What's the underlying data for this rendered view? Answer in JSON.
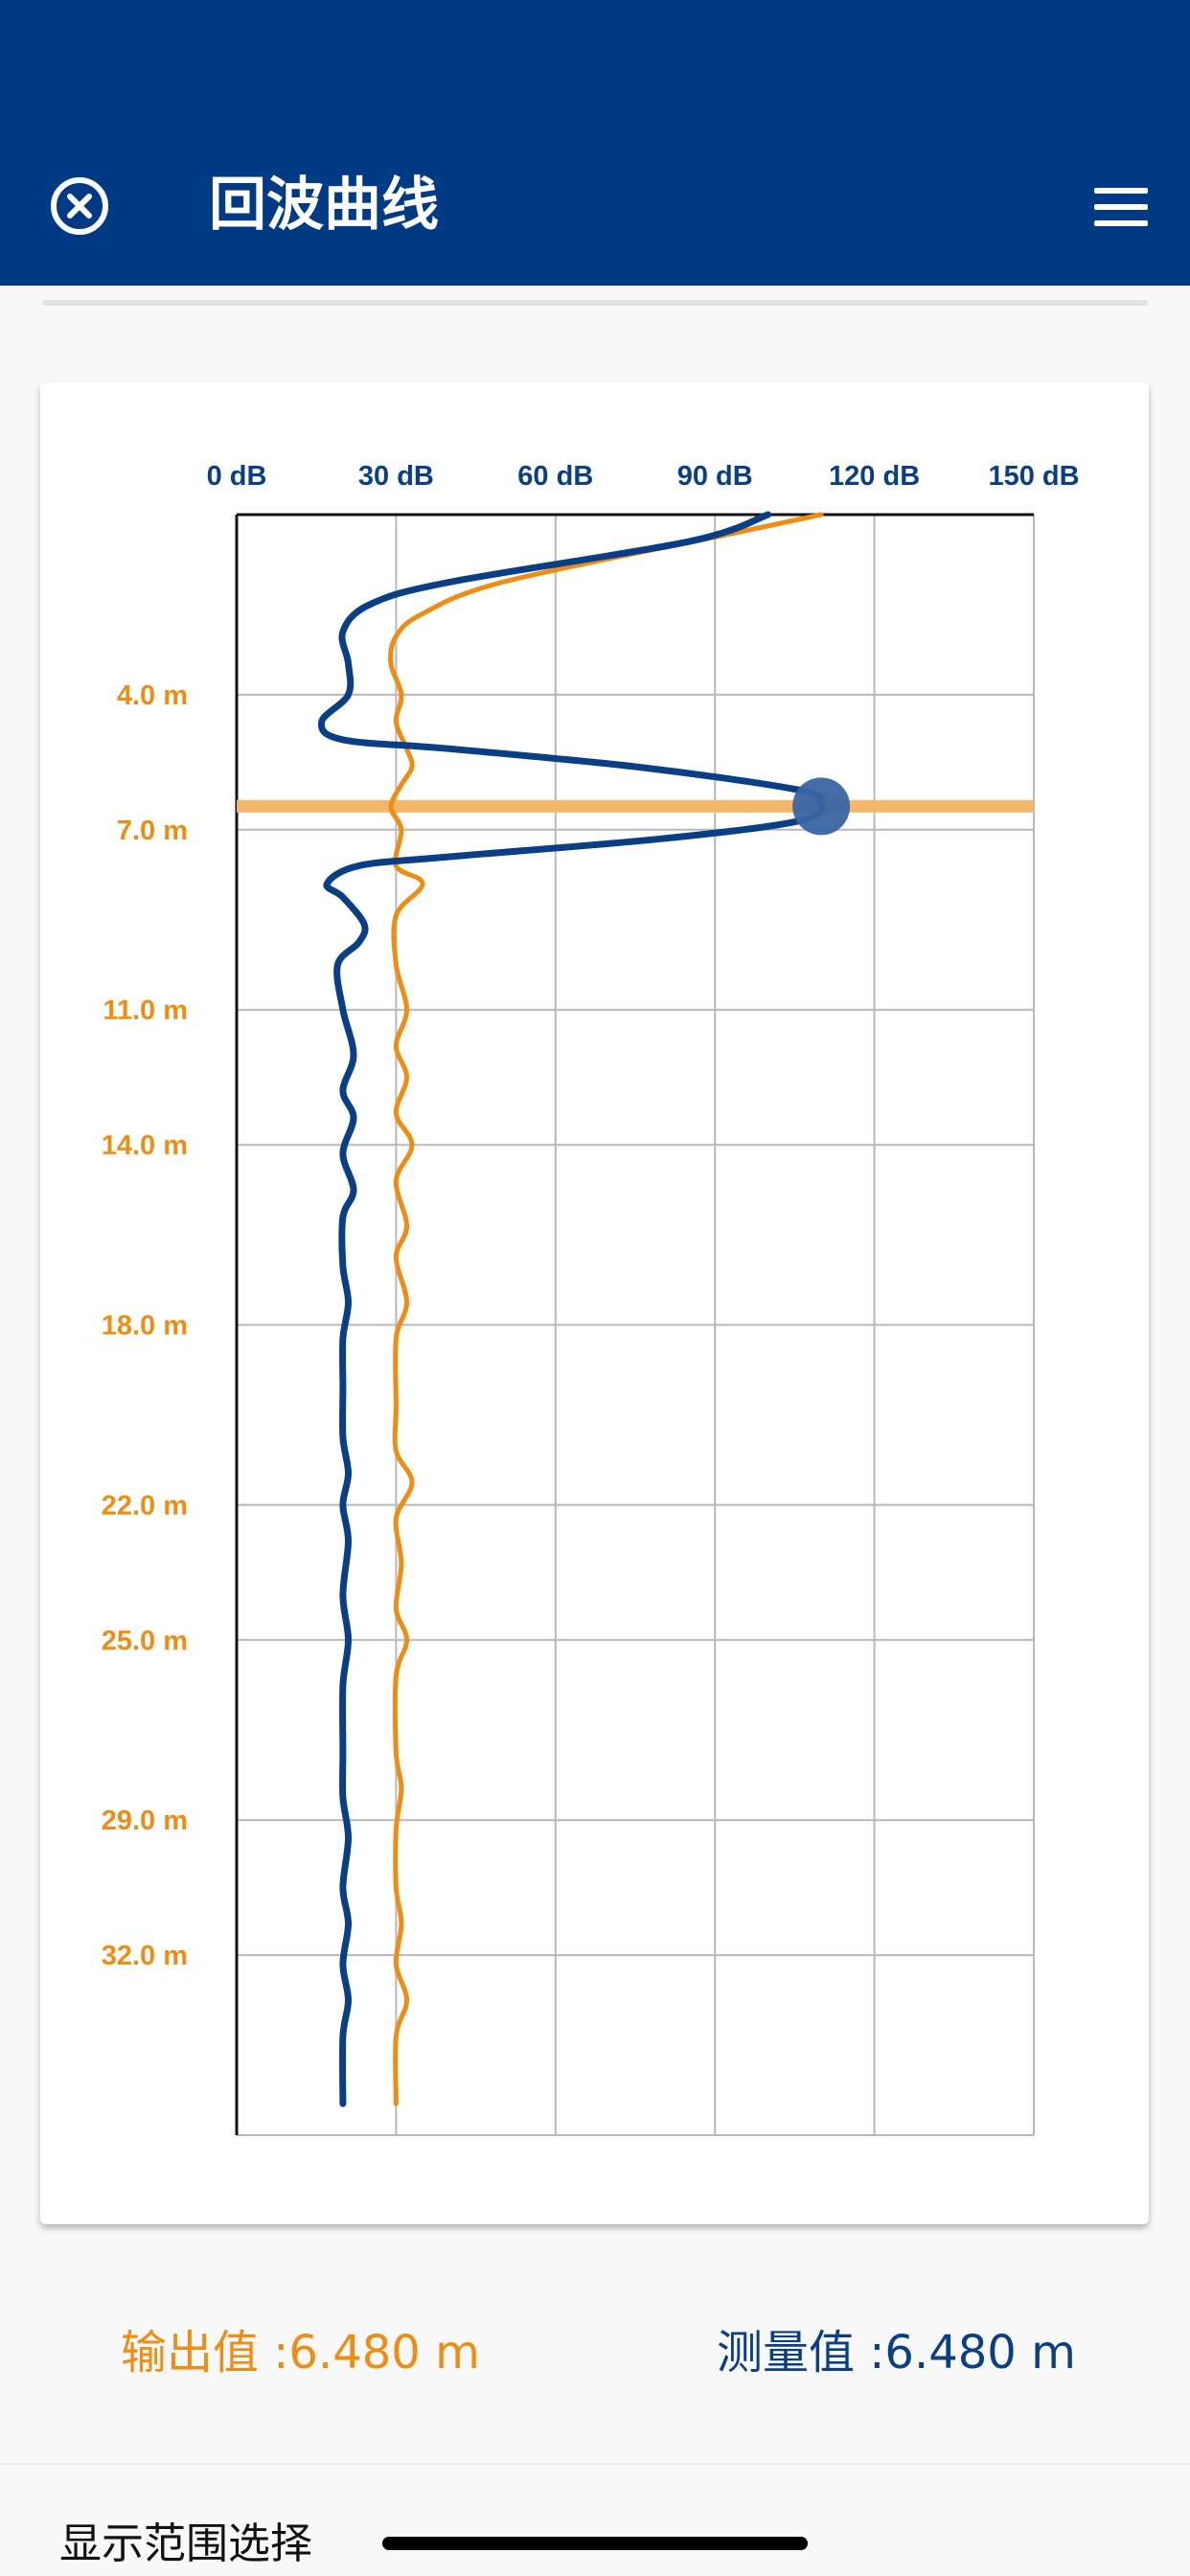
{
  "header": {
    "title": "回波曲线",
    "close_icon": "close-circle-icon",
    "menu_icon": "hamburger-menu-icon",
    "background": "#003a85"
  },
  "chart_data": {
    "type": "line",
    "orientation": "vertical-depth",
    "x_axis": {
      "unit": "dB",
      "position": "top",
      "range": [
        0,
        150
      ],
      "ticks": [
        "0 dB",
        "30 dB",
        "60 dB",
        "90 dB",
        "120 dB",
        "150 dB"
      ],
      "color": "#0a3f86"
    },
    "y_axis": {
      "unit": "m",
      "position": "left",
      "range": [
        0,
        36
      ],
      "ticks": [
        {
          "value": 4,
          "label": "4.0 m"
        },
        {
          "value": 7,
          "label": "7.0 m"
        },
        {
          "value": 11,
          "label": "11.0 m"
        },
        {
          "value": 14,
          "label": "14.0 m"
        },
        {
          "value": 18,
          "label": "18.0 m"
        },
        {
          "value": 22,
          "label": "22.0 m"
        },
        {
          "value": 25,
          "label": "25.0 m"
        },
        {
          "value": 29,
          "label": "29.0 m"
        },
        {
          "value": 32,
          "label": "32.0 m"
        }
      ],
      "color": "#ef8d13"
    },
    "grid": true,
    "series": [
      {
        "color": "#0a3f86",
        "points": [
          [
            100,
            0.0
          ],
          [
            85,
            0.6
          ],
          [
            40,
            1.5
          ],
          [
            25,
            2.0
          ],
          [
            20,
            2.6
          ],
          [
            21,
            3.3
          ],
          [
            21,
            4.0
          ],
          [
            16,
            4.6
          ],
          [
            20,
            5.0
          ],
          [
            40,
            5.2
          ],
          [
            75,
            5.6
          ],
          [
            105,
            6.1
          ],
          [
            110,
            6.4
          ],
          [
            106,
            6.8
          ],
          [
            80,
            7.2
          ],
          [
            40,
            7.6
          ],
          [
            23,
            7.8
          ],
          [
            17,
            8.2
          ],
          [
            20,
            8.5
          ],
          [
            24,
            9.1
          ],
          [
            23,
            9.5
          ],
          [
            19,
            10.0
          ],
          [
            20,
            11.0
          ],
          [
            22,
            12.0
          ],
          [
            20,
            12.8
          ],
          [
            22,
            13.4
          ],
          [
            20,
            14.2
          ],
          [
            22,
            15.0
          ],
          [
            20,
            15.6
          ],
          [
            20,
            16.7
          ],
          [
            21,
            17.5
          ],
          [
            20,
            18.3
          ],
          [
            20,
            19.4
          ],
          [
            20,
            20.5
          ],
          [
            21,
            21.3
          ],
          [
            20,
            22.0
          ],
          [
            21,
            22.8
          ],
          [
            20,
            24.0
          ],
          [
            21,
            25.0
          ],
          [
            20,
            26.0
          ],
          [
            20,
            27.5
          ],
          [
            20,
            28.5
          ],
          [
            21,
            29.4
          ],
          [
            20,
            30.5
          ],
          [
            21,
            31.3
          ],
          [
            20,
            32.2
          ],
          [
            21,
            33.0
          ],
          [
            20,
            33.8
          ],
          [
            20,
            35.3
          ]
        ]
      },
      {
        "color": "#ef8d13",
        "points": [
          [
            110,
            0.0
          ],
          [
            90,
            0.5
          ],
          [
            50,
            1.5
          ],
          [
            35,
            2.2
          ],
          [
            30,
            2.7
          ],
          [
            29,
            3.3
          ],
          [
            31,
            4.0
          ],
          [
            30,
            4.6
          ],
          [
            32,
            5.2
          ],
          [
            33,
            5.6
          ],
          [
            31,
            6.0
          ],
          [
            29,
            6.5
          ],
          [
            31,
            7.0
          ],
          [
            30,
            7.8
          ],
          [
            35,
            8.2
          ],
          [
            30,
            8.9
          ],
          [
            30,
            10.0
          ],
          [
            32,
            11.0
          ],
          [
            30,
            11.8
          ],
          [
            32,
            12.5
          ],
          [
            30,
            13.3
          ],
          [
            33,
            14.0
          ],
          [
            30,
            14.8
          ],
          [
            32,
            15.8
          ],
          [
            30,
            16.5
          ],
          [
            32,
            17.5
          ],
          [
            30,
            18.3
          ],
          [
            30,
            19.8
          ],
          [
            30,
            20.8
          ],
          [
            33,
            21.5
          ],
          [
            30,
            22.3
          ],
          [
            31,
            23.3
          ],
          [
            30,
            24.3
          ],
          [
            32,
            25.0
          ],
          [
            30,
            25.8
          ],
          [
            30,
            27.5
          ],
          [
            31,
            28.3
          ],
          [
            30,
            29.2
          ],
          [
            30,
            30.5
          ],
          [
            31,
            31.3
          ],
          [
            30,
            32.2
          ],
          [
            32,
            33.0
          ],
          [
            30,
            33.8
          ],
          [
            30,
            35.3
          ]
        ]
      }
    ],
    "marker": {
      "depth_m": 6.48,
      "value_db": 110,
      "line_color": "#f4b66a",
      "dot_color": "#3a65a3"
    }
  },
  "readouts": {
    "output_label": "输出值 :6.480 m",
    "measured_label": "测量值 :6.480 m"
  },
  "range_selection": {
    "label": "显示范围选择"
  }
}
